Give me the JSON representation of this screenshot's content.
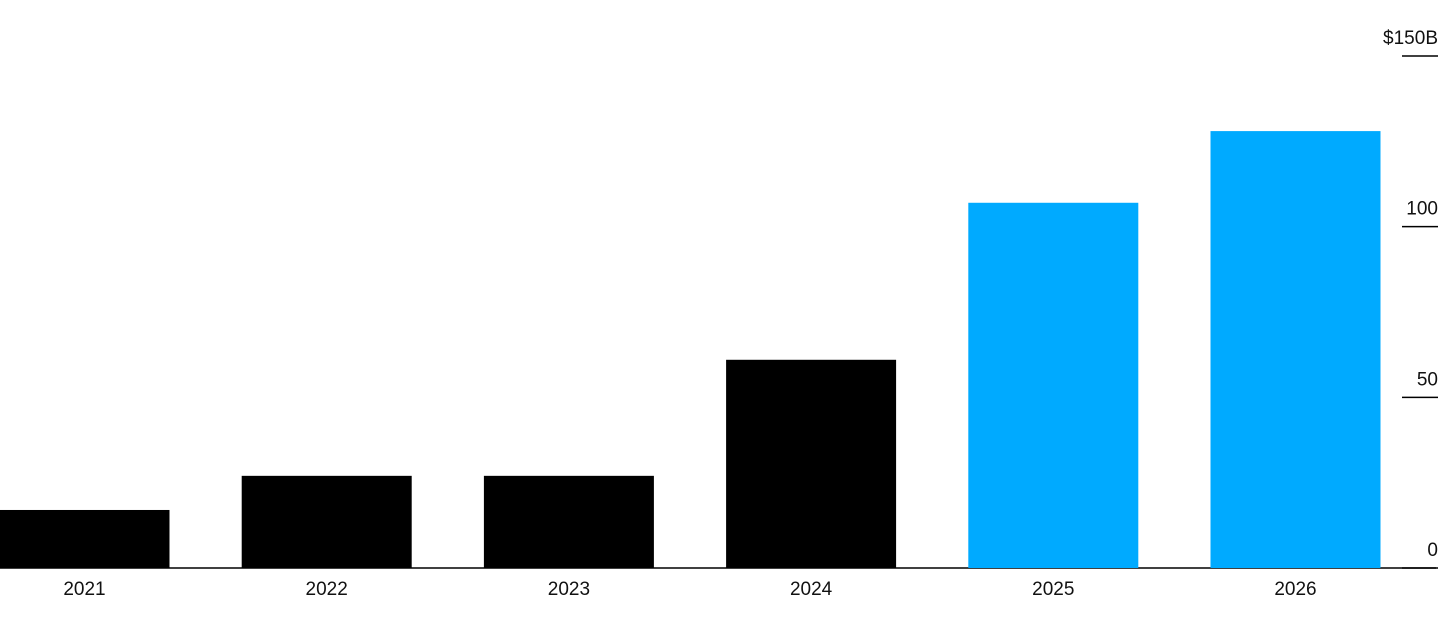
{
  "chart_data": {
    "type": "bar",
    "categories": [
      "2021",
      "2022",
      "2023",
      "2024",
      "2025",
      "2026"
    ],
    "values": [
      17,
      27,
      27,
      61,
      107,
      128
    ],
    "colors": [
      "#000000",
      "#000000",
      "#000000",
      "#000000",
      "#00aaff",
      "#00aaff"
    ],
    "ylim": [
      0,
      150
    ],
    "yticks": [
      0,
      50,
      100,
      {
        "value": 150,
        "label": "$150B"
      }
    ]
  }
}
